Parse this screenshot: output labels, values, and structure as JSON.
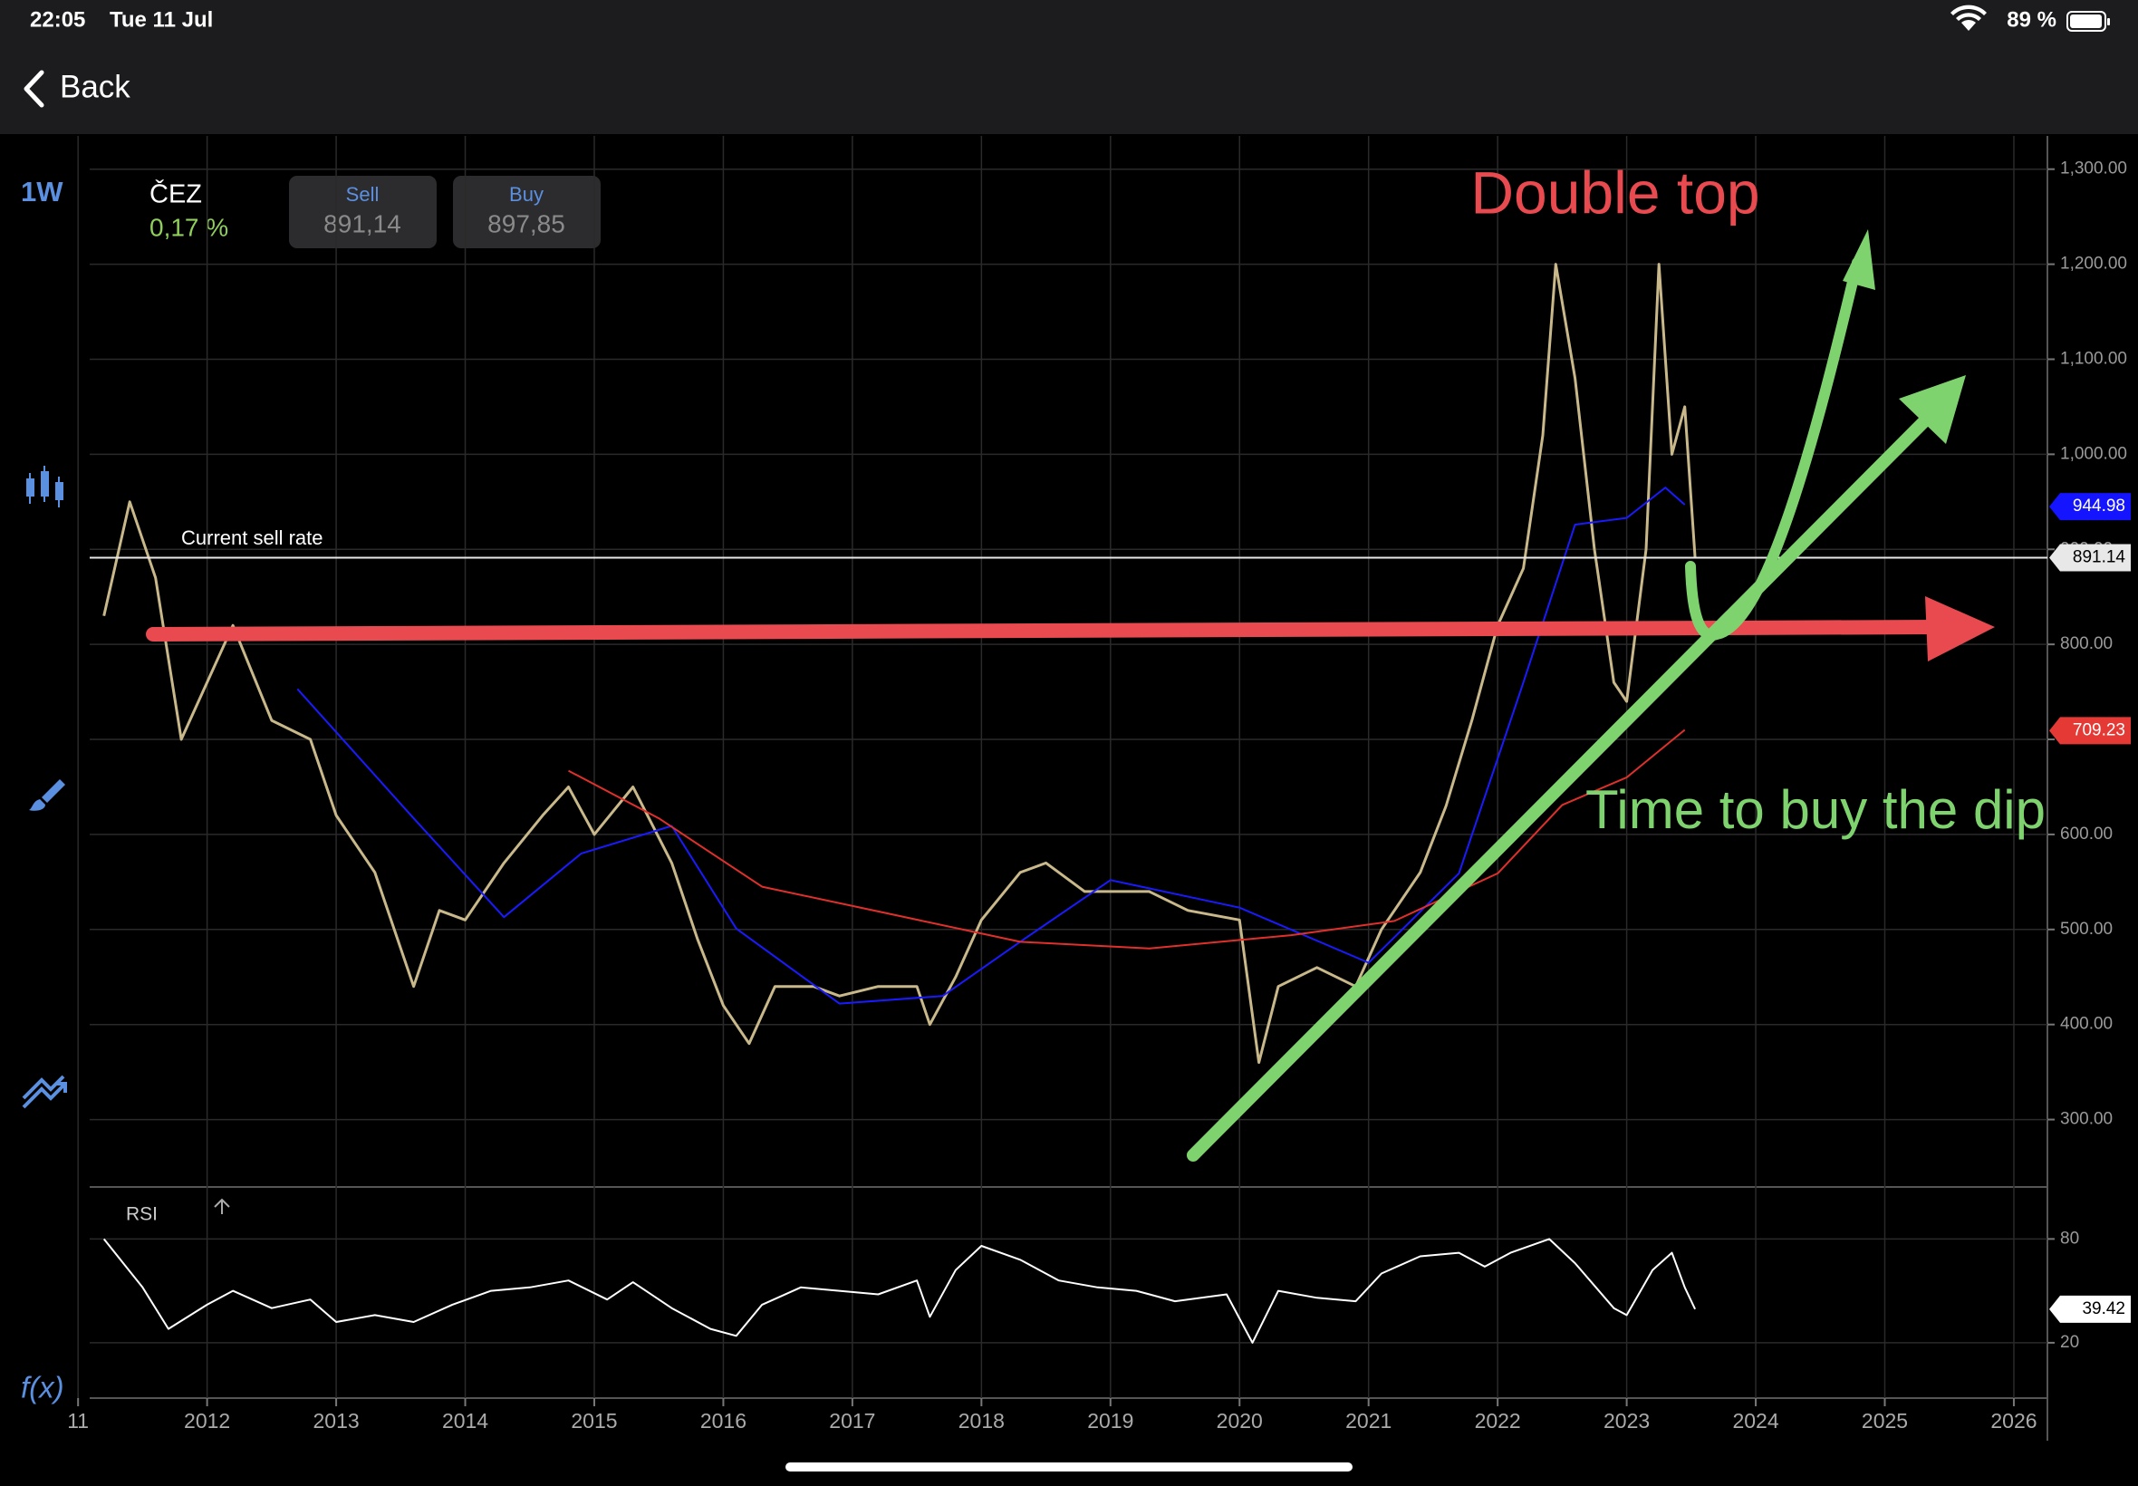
{
  "status_bar": {
    "time": "22:05",
    "date": "Tue 11 Jul",
    "battery": "89 %"
  },
  "nav": {
    "back": "Back"
  },
  "toolbar": {
    "interval": "1W",
    "functions": "f(x)"
  },
  "instrument": {
    "name": "ČEZ",
    "change": "0,17 %",
    "sell_label": "Sell",
    "sell": "891,14",
    "buy_label": "Buy",
    "buy": "897,85"
  },
  "chart_data": [
    {
      "type": "line",
      "annotations": [
        "Current sell rate",
        "Double top",
        "Time to buy the dip"
      ],
      "xlim": [
        2011.09,
        2026.26
      ],
      "xticks": [
        {
          "value": 2011,
          "label": "11"
        },
        2012,
        2013,
        2014,
        2015,
        2016,
        2017,
        2018,
        2019,
        2020,
        2021,
        2022,
        2023,
        2024,
        2025,
        2026
      ],
      "ylim": [
        230,
        1335
      ],
      "yticks": [
        {
          "value": 300,
          "label": "300.00"
        },
        {
          "value": 400,
          "label": "400.00"
        },
        {
          "value": 500,
          "label": "500.00"
        },
        {
          "value": 600,
          "label": "600.00"
        },
        {
          "value": 700,
          "label": "700.00"
        },
        {
          "value": 800,
          "label": "800.00"
        },
        {
          "value": 900,
          "label": "900.00"
        },
        {
          "value": 1000,
          "label": "1,000.00"
        },
        {
          "value": 1100,
          "label": "1,100.00"
        },
        {
          "value": 1200,
          "label": "1,200.00"
        },
        {
          "value": 1300,
          "label": "1,300.00"
        }
      ],
      "grid": true,
      "series": [
        {
          "color": "#c9b98a",
          "x": [
            2011.2,
            2011.4,
            2011.6,
            2011.8,
            2012.0,
            2012.2,
            2012.5,
            2012.8,
            2013.0,
            2013.3,
            2013.6,
            2013.8,
            2014.0,
            2014.3,
            2014.6,
            2014.8,
            2015.0,
            2015.3,
            2015.6,
            2015.8,
            2016.0,
            2016.2,
            2016.4,
            2016.7,
            2016.9,
            2017.2,
            2017.5,
            2017.6,
            2017.8,
            2018.0,
            2018.3,
            2018.5,
            2018.8,
            2019.0,
            2019.3,
            2019.6,
            2020.0,
            2020.15,
            2020.3,
            2020.6,
            2020.9,
            2021.1,
            2021.4,
            2021.6,
            2021.8,
            2022.0,
            2022.2,
            2022.35,
            2022.45,
            2022.6,
            2022.75,
            2022.9,
            2023.0,
            2023.15,
            2023.25,
            2023.35,
            2023.45,
            2023.53
          ],
          "values": [
            830,
            950,
            870,
            700,
            760,
            820,
            720,
            700,
            620,
            560,
            440,
            520,
            510,
            570,
            620,
            650,
            600,
            650,
            570,
            490,
            420,
            380,
            440,
            440,
            430,
            440,
            440,
            400,
            450,
            510,
            560,
            570,
            540,
            540,
            540,
            520,
            510,
            360,
            440,
            460,
            440,
            500,
            560,
            630,
            720,
            820,
            880,
            1020,
            1200,
            1080,
            900,
            760,
            740,
            900,
            1200,
            1000,
            1050,
            891.14
          ]
        },
        {
          "color": "#1a1aff",
          "x": [
            2012.7,
            2013.6,
            2014.3,
            2014.9,
            2015.6,
            2016.1,
            2016.9,
            2017.7,
            2018.3,
            2019.0,
            2020.0,
            2021.0,
            2021.7,
            2022.2,
            2022.6,
            2023.0,
            2023.3,
            2023.45
          ],
          "values": [
            753,
            617,
            513,
            580,
            609,
            501,
            422,
            430,
            487,
            552,
            523,
            465,
            559,
            760,
            926,
            933,
            965,
            947
          ]
        },
        {
          "color": "#e0302b",
          "x": [
            2014.8,
            2015.5,
            2016.3,
            2017.2,
            2018.3,
            2019.3,
            2020.4,
            2021.2,
            2022.0,
            2022.5,
            2023.0,
            2023.45
          ],
          "values": [
            667,
            617,
            545,
            519,
            487,
            480,
            494,
            509,
            559,
            631,
            660,
            710
          ]
        }
      ],
      "price_tags": [
        {
          "value": 944.98,
          "color": "#1414ff",
          "text_color": "#ffffff"
        },
        {
          "value": 891.14,
          "color": "#e8e8e8",
          "text_color": "#000000",
          "line": true
        },
        {
          "value": 709.23,
          "color": "#e53935",
          "text_color": "#ffffff"
        }
      ]
    },
    {
      "type": "line",
      "title": "RSI",
      "xlim": [
        2011.09,
        2026.26
      ],
      "ylim": [
        -12,
        109
      ],
      "yticks": [
        20,
        80
      ],
      "grid": true,
      "series": [
        {
          "color": "#ffffff",
          "x": [
            2011.2,
            2011.5,
            2011.7,
            2012.0,
            2012.2,
            2012.5,
            2012.8,
            2013.0,
            2013.3,
            2013.6,
            2013.9,
            2014.2,
            2014.5,
            2014.8,
            2015.1,
            2015.3,
            2015.6,
            2015.9,
            2016.1,
            2016.3,
            2016.6,
            2016.9,
            2017.2,
            2017.5,
            2017.6,
            2017.8,
            2018.0,
            2018.3,
            2018.6,
            2018.9,
            2019.2,
            2019.5,
            2019.9,
            2020.1,
            2020.3,
            2020.6,
            2020.9,
            2021.1,
            2021.4,
            2021.7,
            2021.9,
            2022.1,
            2022.4,
            2022.6,
            2022.9,
            2023.0,
            2023.2,
            2023.35,
            2023.45,
            2023.53
          ],
          "values": [
            80,
            52,
            28,
            42,
            50,
            40,
            45,
            32,
            36,
            32,
            42,
            50,
            52,
            56,
            45,
            55,
            40,
            28,
            24,
            42,
            52,
            50,
            48,
            56,
            35,
            62,
            76,
            68,
            56,
            52,
            50,
            44,
            48,
            20,
            50,
            46,
            44,
            60,
            70,
            72,
            64,
            72,
            80,
            66,
            40,
            36,
            62,
            72,
            52,
            39.42
          ]
        }
      ],
      "price_tags": [
        {
          "value": 39.42,
          "color": "#ffffff",
          "text_color": "#000000"
        }
      ]
    }
  ]
}
